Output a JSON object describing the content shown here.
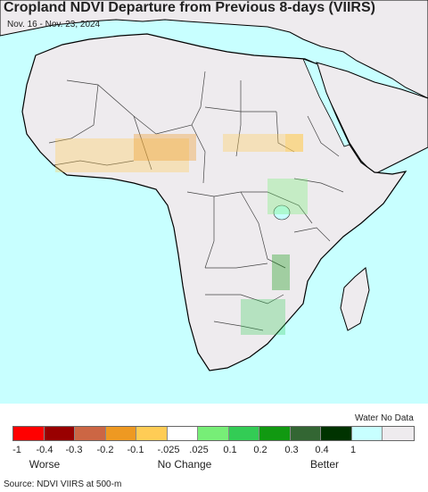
{
  "header": {
    "title": "Cropland NDVI Departure from Previous 8-days (VIIRS)",
    "date_range": "Nov. 16 - Nov. 23, 2024"
  },
  "colors": {
    "ocean": "#c8ffff",
    "land": "#eeebee",
    "border": "#333333",
    "coast": "#000000"
  },
  "legend": {
    "water_label": "Water No Data",
    "swatches": [
      {
        "color": "#ff0000"
      },
      {
        "color": "#990000"
      },
      {
        "color": "#cc6644"
      },
      {
        "color": "#ee9922"
      },
      {
        "color": "#ffcc55"
      },
      {
        "color": "#ffffff"
      },
      {
        "color": "#77ee77"
      },
      {
        "color": "#33cc55"
      },
      {
        "color": "#119911"
      },
      {
        "color": "#336633"
      },
      {
        "color": "#003300"
      },
      {
        "color": "#c8ffff"
      },
      {
        "color": "#eeebee"
      }
    ],
    "ticks": [
      "-1",
      "-0.4",
      "-0.3",
      "-0.2",
      "-0.1",
      "-.025",
      ".025",
      "0.1",
      "0.2",
      "0.3",
      "0.4",
      "1"
    ],
    "captions": {
      "worse": "Worse",
      "no_change": "No Change",
      "better": "Better"
    }
  },
  "footer": {
    "source": "Source: NDVI VIIRS at 500-m"
  }
}
